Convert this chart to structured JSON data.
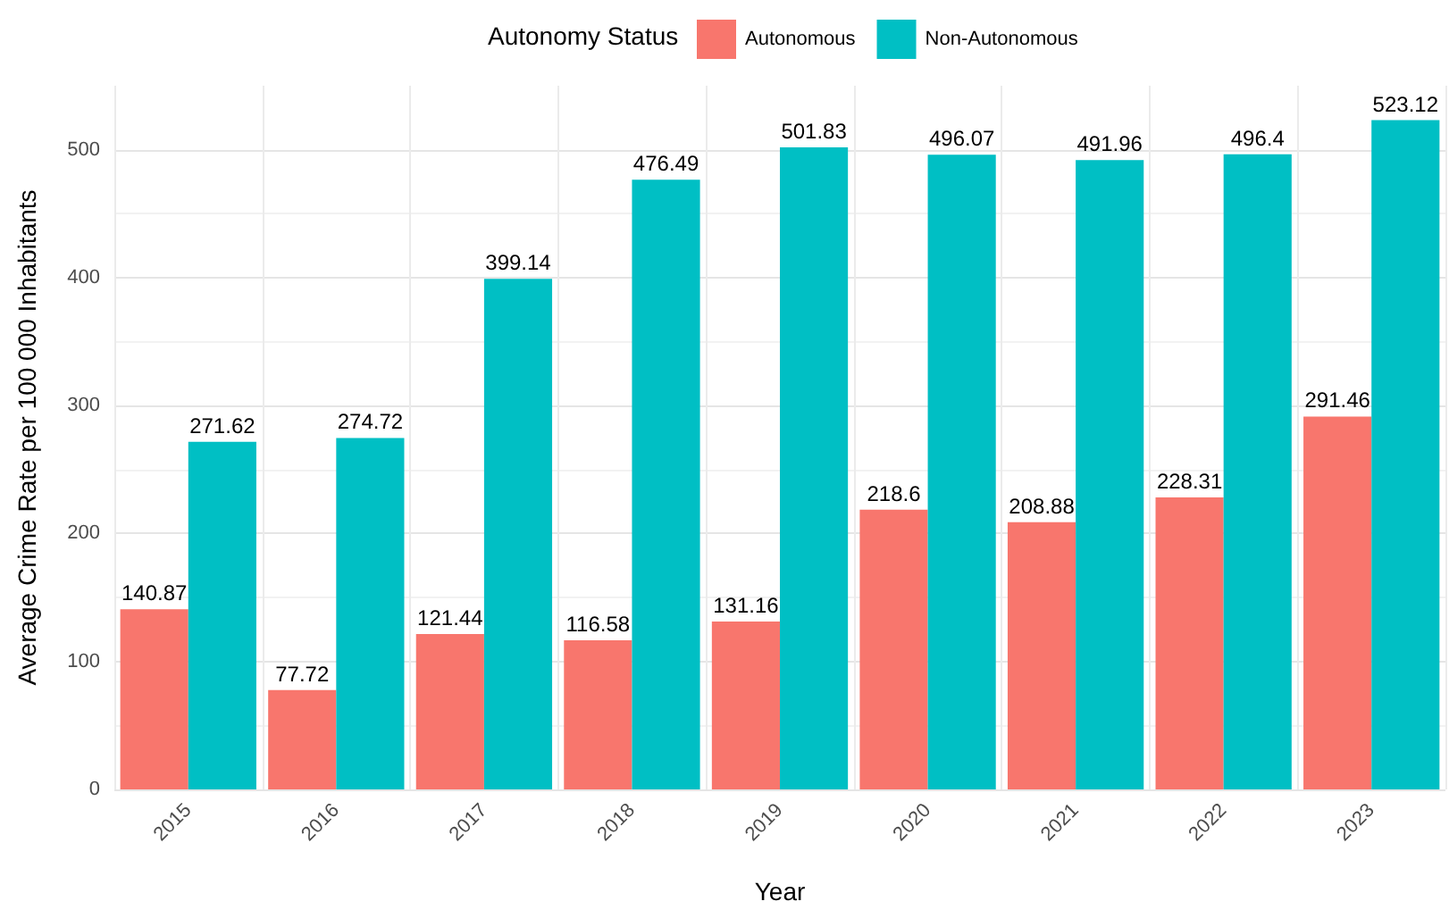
{
  "chart_data": {
    "type": "bar",
    "xlabel": "Year",
    "ylabel": "Average Crime Rate per 100 000 Inhabitants",
    "legend_title": "Autonomy Status",
    "categories": [
      "2015",
      "2016",
      "2017",
      "2018",
      "2019",
      "2020",
      "2021",
      "2022",
      "2023"
    ],
    "series": [
      {
        "name": "Autonomous",
        "color": "#f8766d",
        "values": [
          140.87,
          77.72,
          121.44,
          116.58,
          131.16,
          218.6,
          208.88,
          228.31,
          291.46
        ]
      },
      {
        "name": "Non-Autonomous",
        "color": "#00bfc4",
        "values": [
          271.62,
          274.72,
          399.14,
          476.49,
          501.83,
          496.07,
          491.96,
          496.4,
          523.12
        ]
      }
    ],
    "ylim": [
      0,
      550
    ],
    "yticks": [
      0,
      100,
      200,
      300,
      400,
      500
    ],
    "grid": true,
    "legend": "top",
    "data_labels": true
  }
}
